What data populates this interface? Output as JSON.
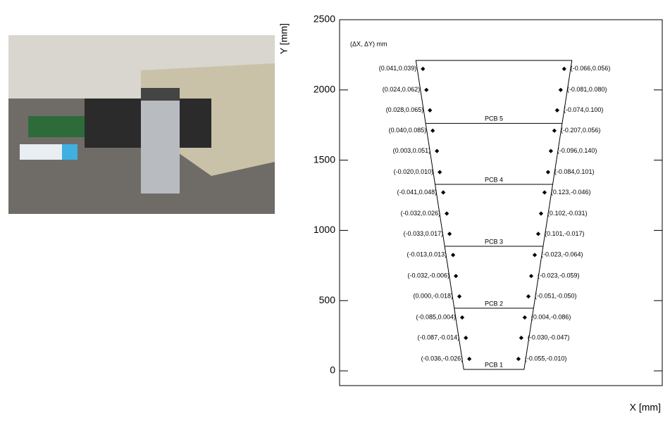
{
  "chart_data": {
    "type": "scatter",
    "annotation": "(ΔX, ΔY) mm",
    "xlabel": "X [mm]",
    "ylabel": "Y [mm]",
    "xlim": [
      -1100,
      1200
    ],
    "ylim": [
      -105,
      2500
    ],
    "yticks": [
      0,
      500,
      1000,
      1500,
      2000,
      2500
    ],
    "color": "#000000",
    "outline": {
      "x": [
        -215,
        215,
        556,
        -556
      ],
      "y": [
        10,
        10,
        2210,
        2210
      ]
    },
    "sections": {
      "y": [
        10,
        446,
        887,
        1328,
        1762
      ],
      "labels": [
        "PCB 1",
        "PCB 2",
        "PCB 3",
        "PCB 4",
        "PCB 5"
      ]
    },
    "series": [
      {
        "x": [
          -506,
          -481,
          -456,
          -436,
          -406,
          -386,
          -361,
          -336,
          -316,
          -291,
          -271,
          -246,
          -226,
          -200,
          -175
        ],
        "values": [
          2150,
          2000,
          1855,
          1710,
          1565,
          1415,
          1270,
          1120,
          975,
          825,
          675,
          530,
          380,
          235,
          85
        ],
        "value_labels": [
          "(0.041,0.039)",
          "(0.024,0.062)",
          "(0.028,0.065)",
          "(0.040,0.085)",
          "(0.003,0.051)",
          "(-0.020,0.010)",
          "(-0.041,0.048)",
          "(-0.032,0.026)",
          "(-0.033,0.017)",
          "(-0.013,0.013)",
          "(-0.032,-0.006)",
          "(0.000,-0.018)",
          "(-0.085,0.004)",
          "(-0.087,-0.014)",
          "(-0.036,-0.026)"
        ]
      },
      {
        "x": [
          501,
          476,
          451,
          431,
          406,
          386,
          361,
          336,
          316,
          291,
          266,
          246,
          220,
          195,
          175
        ],
        "values": [
          2150,
          2000,
          1855,
          1710,
          1565,
          1415,
          1270,
          1120,
          975,
          825,
          675,
          530,
          380,
          235,
          85
        ],
        "value_labels": [
          "(-0.066,0.056)",
          "(-0.081,0.080)",
          "(-0.074,0.100)",
          "(-0.207,0.056)",
          "(-0.096,0.140)",
          "(-0.084,0.101)",
          "(0.123,-0.046)",
          "(0.102,-0.031)",
          "(0.101,-0.017)",
          "(-0.023,-0.064)",
          "(-0.023,-0.059)",
          "(-0.051,-0.050)",
          "(0.004,-0.086)",
          "(-0.030,-0.047)",
          "(-0.055,-0.010)"
        ]
      }
    ]
  }
}
